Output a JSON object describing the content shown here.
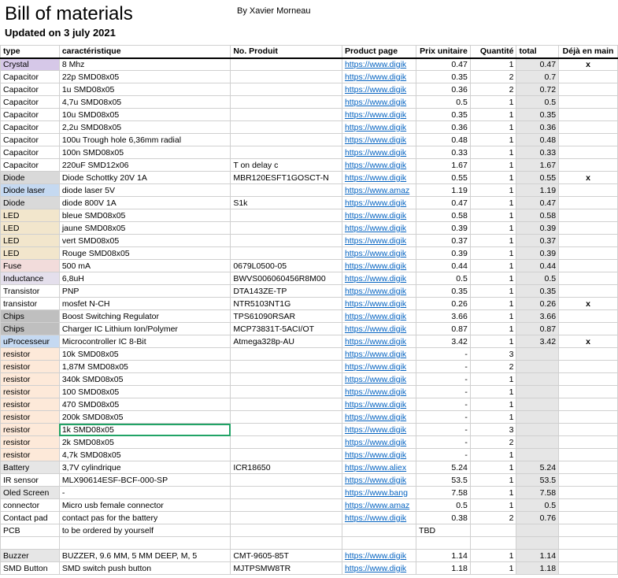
{
  "header": {
    "title": "Bill of materials",
    "subtitle": "Updated on 3 july 2021",
    "author": "By Xavier Morneau"
  },
  "columns": {
    "type": "type",
    "char": "caractéristique",
    "prod": "No. Produit",
    "page": "Product page",
    "price": "Prix unitaire",
    "qty": "Quantité",
    "total": "total",
    "hand": "Déjà en main"
  },
  "link_truncated": {
    "digike": "https://www.digik",
    "amaz": "https://www.amaz",
    "aliex": "https://www.aliex",
    "bang": "https://www.bang"
  },
  "rows": [
    {
      "type": "Crystal",
      "type_class": "c-crystal",
      "char": "8 Mhz",
      "prod": "",
      "link": "digike",
      "price": "0.47",
      "qty": "1",
      "total": "0.47",
      "hand": "x"
    },
    {
      "type": "Capacitor",
      "char": "22p  SMD08x05",
      "prod": "",
      "link": "digike",
      "price": "0.35",
      "qty": "2",
      "total": "0.7"
    },
    {
      "type": "Capacitor",
      "char": "1u SMD08x05",
      "prod": "",
      "link": "digike",
      "price": "0.36",
      "qty": "2",
      "total": "0.72"
    },
    {
      "type": "Capacitor",
      "char": "4,7u SMD08x05",
      "prod": "",
      "link": "digike",
      "price": "0.5",
      "qty": "1",
      "total": "0.5"
    },
    {
      "type": "Capacitor",
      "char": "10u SMD08x05",
      "prod": "",
      "link": "digike",
      "price": "0.35",
      "qty": "1",
      "total": "0.35"
    },
    {
      "type": "Capacitor",
      "char": "2,2u SMD08x05",
      "prod": "",
      "link": "digike",
      "price": "0.36",
      "qty": "1",
      "total": "0.36"
    },
    {
      "type": "Capacitor",
      "char": "100u Trough hole 6,36mm radial",
      "prod": "",
      "link": "digike",
      "price": "0.48",
      "qty": "1",
      "total": "0.48"
    },
    {
      "type": "Capacitor",
      "char": "100n SMD08x05",
      "prod": "",
      "link": "digike",
      "price": "0.33",
      "qty": "1",
      "total": "0.33"
    },
    {
      "type": "Capacitor",
      "char": "220uF SMD12x06",
      "prod": "T on delay c",
      "link": "digike",
      "price": "1.67",
      "qty": "1",
      "total": "1.67"
    },
    {
      "type": "Diode",
      "type_class": "c-diode",
      "char": "Diode Schottky 20V 1A",
      "prod": "MBR120ESFT1GOSCT-N",
      "link": "digike",
      "price": "0.55",
      "qty": "1",
      "total": "0.55",
      "hand": "x"
    },
    {
      "type": "Diode laser",
      "type_class": "c-diodelaser",
      "char": "diode laser 5V",
      "prod": "",
      "link": "amaz",
      "price": "1.19",
      "qty": "1",
      "total": "1.19"
    },
    {
      "type": "Diode",
      "type_class": "c-diode",
      "char": "diode 800V 1A",
      "prod": "S1k",
      "link": "digike",
      "price": "0.47",
      "qty": "1",
      "total": "0.47"
    },
    {
      "type": "LED",
      "type_class": "c-led",
      "char": "bleue SMD08x05",
      "prod": "",
      "link": "digike",
      "price": "0.58",
      "qty": "1",
      "total": "0.58"
    },
    {
      "type": "LED",
      "type_class": "c-led",
      "char": "jaune SMD08x05",
      "prod": "",
      "link": "digike",
      "price": "0.39",
      "qty": "1",
      "total": "0.39"
    },
    {
      "type": "LED",
      "type_class": "c-led",
      "char": "vert SMD08x05",
      "prod": "",
      "link": "digike",
      "price": "0.37",
      "qty": "1",
      "total": "0.37"
    },
    {
      "type": "LED",
      "type_class": "c-led",
      "char": "Rouge SMD08x05",
      "prod": "",
      "link": "digike",
      "price": "0.39",
      "qty": "1",
      "total": "0.39"
    },
    {
      "type": "Fuse",
      "type_class": "c-fuse",
      "char": "500 mA",
      "prod": "0679L0500-05",
      "link": "digike",
      "price": "0.44",
      "qty": "1",
      "total": "0.44"
    },
    {
      "type": "Inductance",
      "type_class": "c-inductance",
      "char": "6,8uH",
      "prod": "BWVS006060456R8M00",
      "link": "digike",
      "price": "0.5",
      "qty": "1",
      "total": "0.5"
    },
    {
      "type": "Transistor",
      "char": "PNP",
      "prod": "DTA143ZE-TP",
      "link": "digike",
      "price": "0.35",
      "qty": "1",
      "total": "0.35"
    },
    {
      "type": "transistor",
      "char": "mosfet N-CH",
      "prod": "NTR5103NT1G",
      "link": "digike",
      "price": "0.26",
      "qty": "1",
      "total": "0.26",
      "hand": "x"
    },
    {
      "type": "Chips",
      "type_class": "c-chips",
      "char": "Boost Switching Regulator",
      "prod": "TPS61090RSAR",
      "link": "digike",
      "price": "3.66",
      "qty": "1",
      "total": "3.66"
    },
    {
      "type": "Chips",
      "type_class": "c-chips",
      "char": "Charger IC Lithium Ion/Polymer",
      "prod": "MCP73831T-5ACI/OT",
      "link": "digike",
      "price": "0.87",
      "qty": "1",
      "total": "0.87"
    },
    {
      "type": "uProcesseur",
      "type_class": "c-uproc",
      "char": "Microcontroller IC 8-Bit",
      "prod": "Atmega328p-AU",
      "link": "digike",
      "price": "3.42",
      "qty": "1",
      "total": "3.42",
      "hand": "x"
    },
    {
      "type": "resistor",
      "type_class": "c-resistor",
      "char": "10k  SMD08x05",
      "prod": "",
      "link": "digike",
      "price": "-",
      "qty": "3",
      "total": ""
    },
    {
      "type": "resistor",
      "type_class": "c-resistor",
      "char": "1,87M   SMD08x05",
      "prod": "",
      "link": "digike",
      "price": "-",
      "qty": "2",
      "total": ""
    },
    {
      "type": "resistor",
      "type_class": "c-resistor",
      "char": "340k   SMD08x05",
      "prod": "",
      "link": "digike",
      "price": "-",
      "qty": "1",
      "total": ""
    },
    {
      "type": "resistor",
      "type_class": "c-resistor",
      "char": "100   SMD08x05",
      "prod": "",
      "link": "digike",
      "price": "-",
      "qty": "1",
      "total": ""
    },
    {
      "type": "resistor",
      "type_class": "c-resistor",
      "char": "470   SMD08x05",
      "prod": "",
      "link": "digike",
      "price": "-",
      "qty": "1",
      "total": ""
    },
    {
      "type": "resistor",
      "type_class": "c-resistor",
      "char": "200k   SMD08x05",
      "prod": "",
      "link": "digike",
      "price": "-",
      "qty": "1",
      "total": ""
    },
    {
      "type": "resistor",
      "type_class": "c-resistor",
      "char": "1k   SMD08x05",
      "prod": "",
      "link": "digike",
      "price": "-",
      "qty": "3",
      "total": "",
      "selected": true
    },
    {
      "type": "resistor",
      "type_class": "c-resistor",
      "char": "2k   SMD08x05",
      "prod": "",
      "link": "digike",
      "price": "-",
      "qty": "2",
      "total": ""
    },
    {
      "type": "resistor",
      "type_class": "c-resistor",
      "char": "4,7k   SMD08x05",
      "prod": "",
      "link": "digike",
      "price": "-",
      "qty": "1",
      "total": ""
    },
    {
      "type": "Battery",
      "type_class": "c-battery",
      "char": "3,7V cylindrique",
      "prod": "ICR18650",
      "link": "aliex",
      "price": "5.24",
      "qty": "1",
      "total": "5.24"
    },
    {
      "type": "IR sensor",
      "char": "MLX90614ESF-BCF-000-SP",
      "prod": "",
      "link": "digike",
      "price": "53.5",
      "qty": "1",
      "total": "53.5"
    },
    {
      "type": "Oled Screen",
      "type_class": "c-oled",
      "char": "-",
      "prod": "",
      "link": "bang",
      "price": "7.58",
      "qty": "1",
      "total": "7.58"
    },
    {
      "type": "connector",
      "char": "Micro usb female connector",
      "prod": "",
      "link": "amaz",
      "price": "0.5",
      "qty": "1",
      "total": "0.5"
    },
    {
      "type": "Contact pad",
      "char": "contact pas for the battery",
      "prod": "",
      "link": "digike",
      "price": "0.38",
      "qty": "2",
      "total": "0.76"
    },
    {
      "type": "PCB",
      "char": "to be ordered by yourself",
      "prod": "",
      "link": "",
      "price": "TBD",
      "price_align": "left",
      "qty": "",
      "total": ""
    },
    {
      "blank": true
    },
    {
      "type": "Buzzer",
      "type_class": "c-buzzer",
      "char": "BUZZER, 9.6 MM, 5 MM DEEP, M, 5",
      "prod": "CMT-9605-85T",
      "link": "digike",
      "price": "1.14",
      "qty": "1",
      "total": "1.14"
    },
    {
      "type": "SMD Button",
      "char": "SMD switch push button",
      "prod": "MJTPSMW8TR",
      "link": "digike",
      "price": "1.18",
      "qty": "1",
      "total": "1.18"
    }
  ]
}
